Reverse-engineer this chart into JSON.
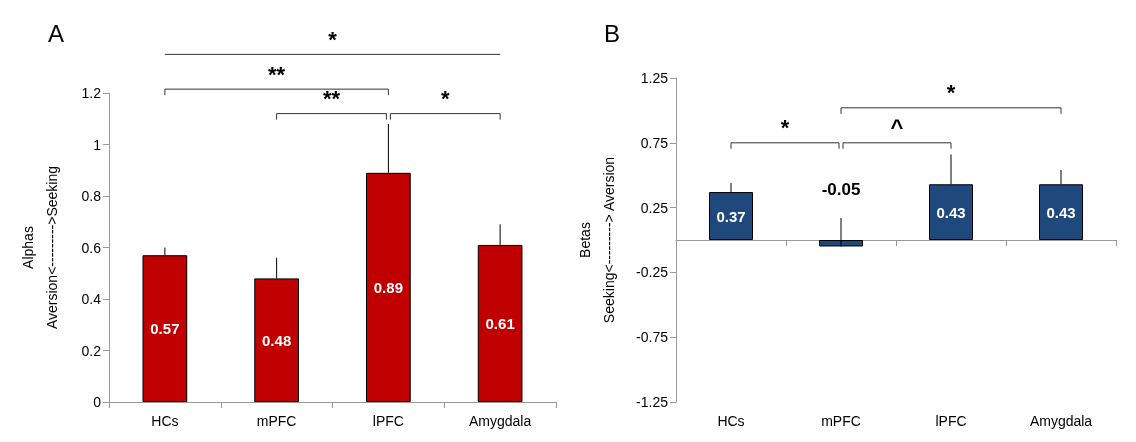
{
  "chart_data": [
    {
      "type": "bar",
      "title": "A",
      "ylabel": "Alphas\nAversion<--------->Seeking",
      "categories": [
        "HCs",
        "mPFC",
        "lPFC",
        "Amygdala"
      ],
      "values": [
        0.57,
        0.48,
        0.89,
        0.61
      ],
      "errors": [
        [
          0.57,
          0.6
        ],
        [
          0.48,
          0.56
        ],
        [
          0.89,
          1.08
        ],
        [
          0.61,
          0.69
        ]
      ],
      "color": "#c00000",
      "data_labels": true,
      "ylim": [
        0,
        1.2
      ],
      "yticks": [
        0,
        0.2,
        0.4,
        0.6,
        0.8,
        1,
        1.2
      ],
      "grid": false,
      "annotations": [
        "*",
        "**",
        "**",
        "*"
      ]
    },
    {
      "type": "bar",
      "title": "B",
      "ylabel": "Betas\nSeeking<---------> Aversion",
      "categories": [
        "HCs",
        "mPFC",
        "lPFC",
        "Amygdala"
      ],
      "values": [
        0.37,
        -0.05,
        0.43,
        0.43
      ],
      "errors": [
        [
          0.37,
          0.44
        ],
        [
          -0.05,
          0.17
        ],
        [
          0.43,
          0.66
        ],
        [
          0.43,
          0.54
        ]
      ],
      "color": "#1f497d",
      "data_labels": true,
      "ylim": [
        -1.25,
        1.25
      ],
      "yticks": [
        -1.25,
        -0.75,
        -0.25,
        0.25,
        0.75,
        1.25
      ],
      "grid": false,
      "annotations": [
        "*",
        "^",
        "*"
      ]
    }
  ]
}
